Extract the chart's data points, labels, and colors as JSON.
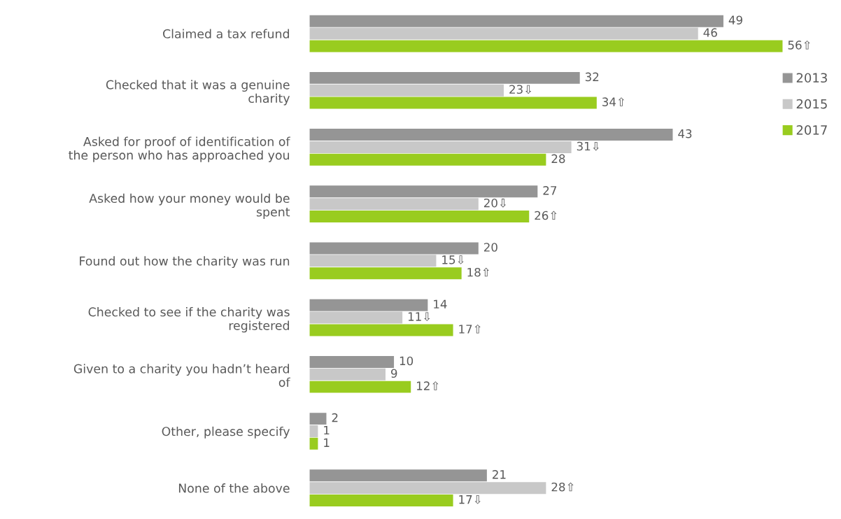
{
  "chart_data": {
    "type": "bar",
    "orientation": "horizontal",
    "categories": [
      "Claimed a tax refund",
      "Checked that it was a genuine\ncharity",
      "Asked for proof of identification of\nthe person who has approached you",
      "Asked how your money would be\nspent",
      "Found out how the charity was run",
      "Checked to see if the charity was\nregistered",
      "Given to a charity you hadn’t heard\nof",
      "Other, please specify",
      "None of the above"
    ],
    "series": [
      {
        "name": "2013",
        "color": "#959595",
        "values": [
          49,
          32,
          43,
          27,
          20,
          14,
          10,
          2,
          21
        ],
        "value_labels": [
          "49",
          "32",
          "43",
          "27",
          "20",
          "14",
          "10",
          "2",
          "21"
        ]
      },
      {
        "name": "2015",
        "color": "#c8c8c8",
        "values": [
          46,
          23,
          31,
          20,
          15,
          11,
          9,
          1,
          28
        ],
        "value_labels": [
          "46",
          "23⇩",
          "31⇩",
          "20⇩",
          "15⇩",
          "11⇩",
          "9",
          "1",
          "28⇧"
        ]
      },
      {
        "name": "2017",
        "color": "#99cc1f",
        "values": [
          56,
          34,
          28,
          26,
          18,
          17,
          12,
          1,
          17
        ],
        "value_labels": [
          "56⇧",
          "34⇧",
          "28",
          "26⇧",
          "18⇧",
          "17⇧",
          "12⇧",
          "1",
          "17⇩"
        ]
      }
    ],
    "legend": "top right",
    "grid": false,
    "tick_labels": "y"
  }
}
